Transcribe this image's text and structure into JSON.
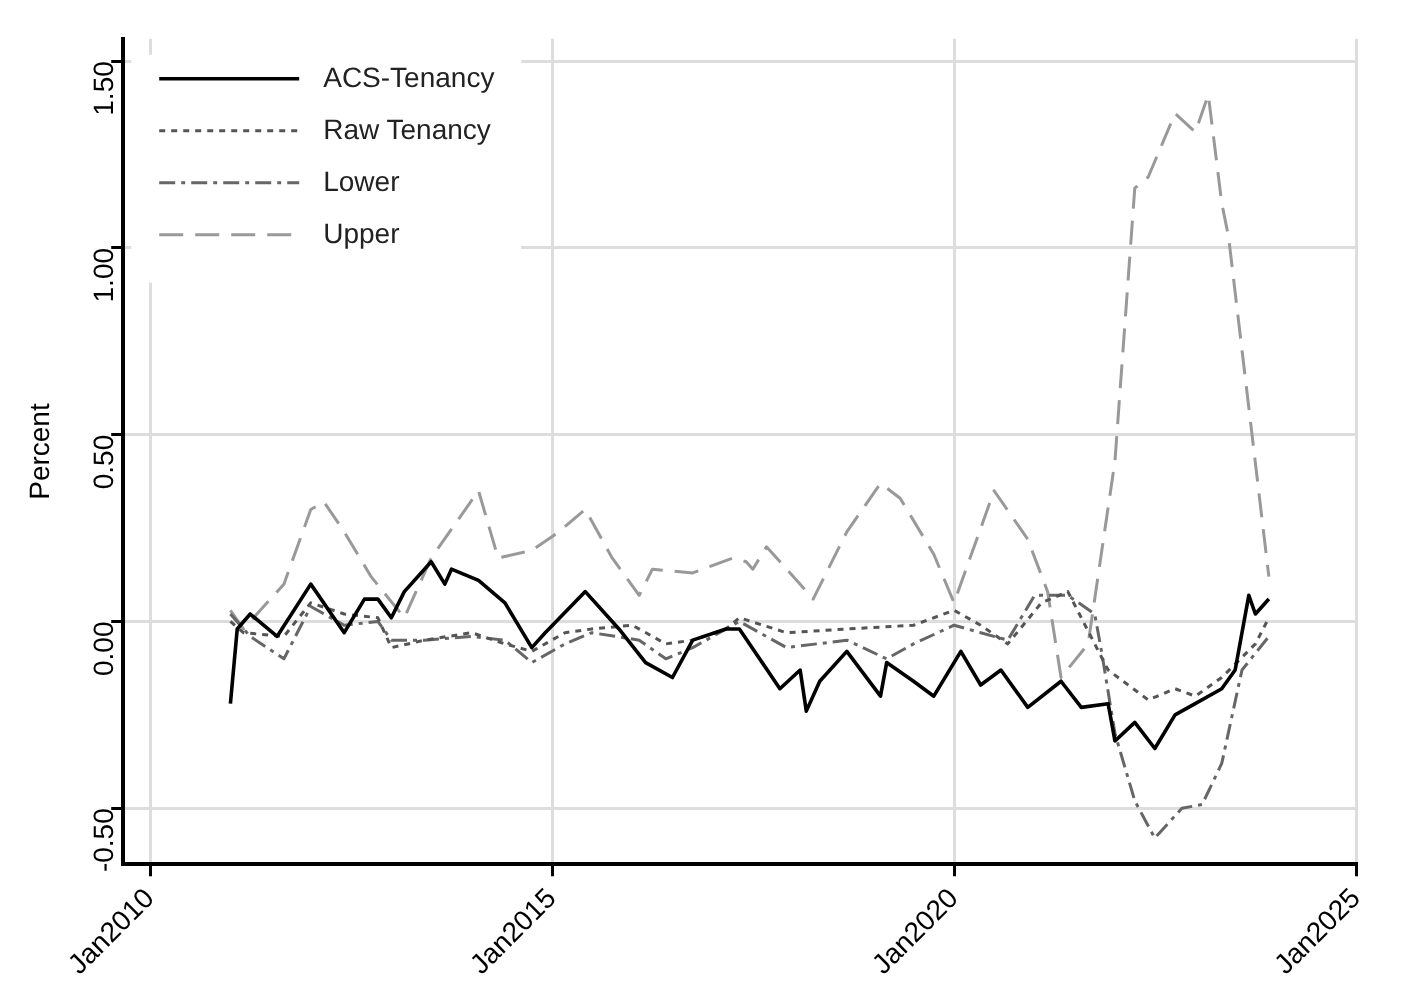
{
  "chart_data": {
    "type": "line",
    "ylabel": "Percent",
    "xlim": [
      "2009-09",
      "2025-01"
    ],
    "ylim": [
      -0.65,
      1.56
    ],
    "xticks": [
      {
        "value": "2010-01",
        "label": "Jan2010"
      },
      {
        "value": "2015-01",
        "label": "Jan2015"
      },
      {
        "value": "2020-01",
        "label": "Jan2020"
      },
      {
        "value": "2025-01",
        "label": "Jan2025"
      }
    ],
    "yticks": [
      {
        "value": -0.5,
        "label": "-0.50"
      },
      {
        "value": 0,
        "label": "0.00"
      },
      {
        "value": 0.5,
        "label": "0.50"
      },
      {
        "value": 1,
        "label": "1.00"
      },
      {
        "value": 1.5,
        "label": "1.50"
      }
    ],
    "grid": true,
    "legend": "top left",
    "marker": "none",
    "series": [
      {
        "name": "ACS-Tenancy",
        "color": "#000000",
        "line_style": "solid",
        "x": [
          "2011-01",
          "2011-02",
          "2011-04",
          "2011-08",
          "2012-01",
          "2012-06",
          "2012-09",
          "2012-11",
          "2013-01",
          "2013-03",
          "2013-07",
          "2013-09",
          "2013-10",
          "2014-02",
          "2014-06",
          "2014-10",
          "2014-12",
          "2015-06",
          "2015-11",
          "2016-03",
          "2016-07",
          "2016-10",
          "2017-03",
          "2017-05",
          "2017-11",
          "2018-02",
          "2018-03",
          "2018-05",
          "2018-09",
          "2019-02",
          "2019-03",
          "2019-07",
          "2019-10",
          "2020-02",
          "2020-05",
          "2020-08",
          "2020-12",
          "2021-05",
          "2021-08",
          "2021-12",
          "2022-01",
          "2022-04",
          "2022-07",
          "2022-10",
          "2022-12",
          "2023-05",
          "2023-07",
          "2023-09",
          "2023-10",
          "2023-12"
        ],
        "values": [
          -0.22,
          -0.02,
          0.02,
          -0.04,
          0.1,
          -0.03,
          0.06,
          0.06,
          0.01,
          0.08,
          0.16,
          0.1,
          0.14,
          0.11,
          0.05,
          -0.07,
          -0.03,
          0.08,
          -0.02,
          -0.11,
          -0.15,
          -0.05,
          -0.02,
          -0.02,
          -0.18,
          -0.13,
          -0.24,
          -0.16,
          -0.08,
          -0.2,
          -0.11,
          -0.16,
          -0.2,
          -0.08,
          -0.17,
          -0.13,
          -0.23,
          -0.16,
          -0.23,
          -0.22,
          -0.32,
          -0.27,
          -0.34,
          -0.25,
          -0.23,
          -0.18,
          -0.13,
          0.07,
          0.02,
          0.06
        ]
      },
      {
        "name": "Raw Tenancy",
        "color": "#555555",
        "line_style": "dotted",
        "x": [
          "2011-01",
          "2011-03",
          "2011-09",
          "2012-01",
          "2012-06",
          "2012-11",
          "2013-01",
          "2013-06",
          "2014-01",
          "2014-06",
          "2014-10",
          "2015-03",
          "2015-07",
          "2016-01",
          "2016-06",
          "2016-10",
          "2017-03",
          "2017-05",
          "2017-12",
          "2018-09",
          "2019-07",
          "2020-01",
          "2020-05",
          "2020-09",
          "2021-02",
          "2021-06",
          "2021-12",
          "2022-06",
          "2022-10",
          "2023-01",
          "2023-05",
          "2023-10",
          "2023-12"
        ],
        "values": [
          0,
          -0.03,
          -0.04,
          0.05,
          0.02,
          0.01,
          -0.07,
          -0.05,
          -0.03,
          -0.06,
          -0.08,
          -0.03,
          -0.02,
          -0.01,
          -0.06,
          -0.05,
          -0.02,
          0.01,
          -0.03,
          -0.02,
          -0.01,
          0.03,
          -0.01,
          -0.06,
          0.05,
          0.08,
          -0.13,
          -0.21,
          -0.18,
          -0.2,
          -0.15,
          -0.06,
          0.01
        ]
      },
      {
        "name": "Lower",
        "color": "#666666",
        "line_style": "dashdot",
        "x": [
          "2011-01",
          "2011-04",
          "2011-09",
          "2012-01",
          "2012-06",
          "2012-11",
          "2013-01",
          "2013-06",
          "2014-01",
          "2014-06",
          "2014-10",
          "2015-03",
          "2015-07",
          "2016-02",
          "2016-06",
          "2016-10",
          "2017-03",
          "2017-05",
          "2017-12",
          "2018-09",
          "2019-03",
          "2019-07",
          "2020-01",
          "2020-05",
          "2020-09",
          "2021-01",
          "2021-06",
          "2021-10",
          "2021-11",
          "2022-01",
          "2022-04",
          "2022-07",
          "2022-11",
          "2023-02",
          "2023-05",
          "2023-08",
          "2023-12"
        ],
        "values": [
          0.02,
          -0.04,
          -0.1,
          0.04,
          -0.01,
          0,
          -0.05,
          -0.05,
          -0.04,
          -0.05,
          -0.11,
          -0.06,
          -0.03,
          -0.05,
          -0.1,
          -0.07,
          -0.02,
          0,
          -0.07,
          -0.05,
          -0.1,
          -0.06,
          -0.01,
          -0.03,
          -0.05,
          0.07,
          0.07,
          0.02,
          -0.08,
          -0.3,
          -0.48,
          -0.58,
          -0.5,
          -0.49,
          -0.38,
          -0.13,
          -0.04
        ]
      },
      {
        "name": "Upper",
        "color": "#999999",
        "line_style": "dashed",
        "x": [
          "2011-01",
          "2011-03",
          "2011-09",
          "2012-01",
          "2012-03",
          "2012-06",
          "2012-10",
          "2013-03",
          "2013-07",
          "2014-02",
          "2014-05",
          "2014-10",
          "2015-02",
          "2015-06",
          "2015-10",
          "2016-02",
          "2016-04",
          "2016-10",
          "2017-04",
          "2017-06",
          "2017-07",
          "2017-09",
          "2018-02",
          "2018-04",
          "2018-09",
          "2019-02",
          "2019-05",
          "2019-10",
          "2020-01",
          "2020-07",
          "2020-12",
          "2021-03",
          "2021-05",
          "2021-09",
          "2022-01",
          "2022-04",
          "2022-06",
          "2022-10",
          "2023-01",
          "2023-03",
          "2023-05",
          "2023-06",
          "2023-12"
        ],
        "values": [
          0.03,
          -0.02,
          0.1,
          0.3,
          0.32,
          0.24,
          0.12,
          0.01,
          0.17,
          0.35,
          0.17,
          0.19,
          0.24,
          0.3,
          0.17,
          0.07,
          0.14,
          0.13,
          0.17,
          0.16,
          0.14,
          0.2,
          0.1,
          0.06,
          0.24,
          0.37,
          0.33,
          0.18,
          0.05,
          0.35,
          0.22,
          0.08,
          -0.15,
          -0.06,
          0.43,
          1.16,
          1.19,
          1.36,
          1.31,
          1.41,
          1.12,
          1.03,
          0.12
        ]
      }
    ]
  }
}
